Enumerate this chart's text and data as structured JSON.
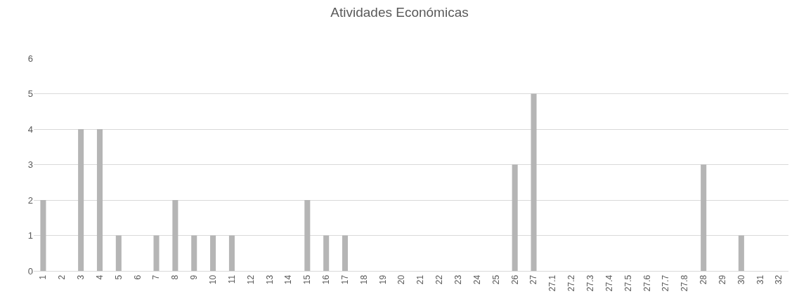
{
  "chart_data": {
    "type": "bar",
    "title": "Atividades Económicas",
    "categories": [
      "1",
      "2",
      "3",
      "4",
      "5",
      "6",
      "7",
      "8",
      "9",
      "10",
      "11",
      "12",
      "13",
      "14",
      "15",
      "16",
      "17",
      "18",
      "19",
      "20",
      "21",
      "22",
      "23",
      "24",
      "25",
      "26",
      "27",
      "27.1",
      "27.2",
      "27.3",
      "27.4",
      "27.5",
      "27.6",
      "27.7",
      "27.8",
      "28",
      "29",
      "30",
      "31",
      "32"
    ],
    "values": [
      2,
      0,
      4,
      4,
      1,
      0,
      1,
      2,
      1,
      1,
      1,
      0,
      0,
      0,
      2,
      1,
      1,
      0,
      0,
      0,
      0,
      0,
      0,
      0,
      0,
      3,
      5,
      0,
      0,
      0,
      0,
      0,
      0,
      0,
      0,
      3,
      0,
      1,
      0,
      0
    ],
    "color": "#b5b5b5",
    "ylim": [
      0,
      6
    ],
    "yticks": [
      0,
      1,
      2,
      3,
      4,
      5,
      6
    ],
    "grid": "y"
  }
}
